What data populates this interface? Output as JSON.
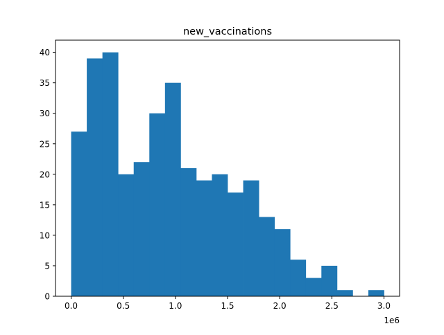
{
  "chart_data": {
    "type": "bar",
    "title": "new_vaccinations",
    "xlabel": "",
    "ylabel": "",
    "x_offset_label": "1e6",
    "bin_edges": [
      0.0,
      0.15,
      0.3,
      0.45,
      0.6,
      0.75,
      0.9,
      1.05,
      1.2,
      1.35,
      1.5,
      1.65,
      1.8,
      1.95,
      2.1,
      2.25,
      2.4,
      2.55,
      2.7,
      2.85,
      3.0
    ],
    "counts": [
      27,
      39,
      40,
      20,
      22,
      30,
      35,
      21,
      19,
      20,
      17,
      19,
      13,
      11,
      6,
      3,
      5,
      1,
      0,
      1
    ],
    "xlim": [
      -0.15,
      3.15
    ],
    "ylim": [
      0,
      42
    ],
    "xticks": [
      0.0,
      0.5,
      1.0,
      1.5,
      2.0,
      2.5,
      3.0
    ],
    "xtick_labels": [
      "0.0",
      "0.5",
      "1.0",
      "1.5",
      "2.0",
      "2.5",
      "3.0"
    ],
    "yticks": [
      0,
      5,
      10,
      15,
      20,
      25,
      30,
      35,
      40
    ],
    "ytick_labels": [
      "0",
      "5",
      "10",
      "15",
      "20",
      "25",
      "30",
      "35",
      "40"
    ],
    "bar_color": "#1f77b4",
    "grid": false,
    "legend": "none"
  }
}
